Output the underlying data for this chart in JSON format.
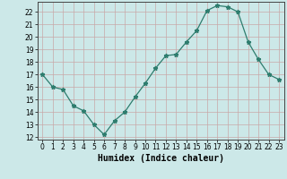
{
  "x": [
    0,
    1,
    2,
    3,
    4,
    5,
    6,
    7,
    8,
    9,
    10,
    11,
    12,
    13,
    14,
    15,
    16,
    17,
    18,
    19,
    20,
    21,
    22,
    23
  ],
  "y": [
    17,
    16,
    15.8,
    14.5,
    14.1,
    13.0,
    12.2,
    13.3,
    14.0,
    15.2,
    16.3,
    17.5,
    18.5,
    18.6,
    19.6,
    20.5,
    22.1,
    22.5,
    22.4,
    22.0,
    19.6,
    18.2,
    17.0,
    16.6
  ],
  "xlabel": "Humidex (Indice chaleur)",
  "xlim": [
    -0.5,
    23.5
  ],
  "ylim": [
    11.8,
    22.8
  ],
  "yticks": [
    12,
    13,
    14,
    15,
    16,
    17,
    18,
    19,
    20,
    21,
    22
  ],
  "xticks": [
    0,
    1,
    2,
    3,
    4,
    5,
    6,
    7,
    8,
    9,
    10,
    11,
    12,
    13,
    14,
    15,
    16,
    17,
    18,
    19,
    20,
    21,
    22,
    23
  ],
  "line_color": "#2e7d6e",
  "marker": "*",
  "background_color": "#cce8e8",
  "grid_color": "#b8d8d8",
  "tick_fontsize": 5.5,
  "label_fontsize": 7
}
